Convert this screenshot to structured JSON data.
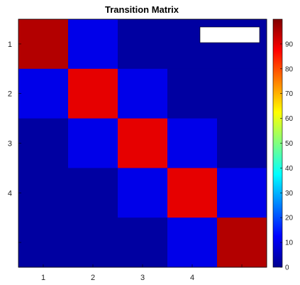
{
  "chart_data": {
    "type": "heatmap",
    "title": "Transition Matrix",
    "x_tick_labels": [
      "1",
      "2",
      "3",
      "4",
      ""
    ],
    "y_tick_labels": [
      "1",
      "2",
      "3",
      "4",
      ""
    ],
    "values": [
      [
        95,
        10,
        2,
        2,
        2
      ],
      [
        10,
        90,
        10,
        2,
        2
      ],
      [
        2,
        10,
        90,
        10,
        2
      ],
      [
        2,
        2,
        10,
        90,
        10
      ],
      [
        2,
        2,
        2,
        10,
        95
      ]
    ],
    "colorbar": {
      "min": 0,
      "max": 100,
      "ticks": [
        0,
        10,
        20,
        30,
        40,
        50,
        60,
        70,
        80,
        90
      ],
      "colormap": "jet"
    },
    "legend": {
      "placement": "top-right",
      "text": "",
      "color": "#ffffff"
    }
  }
}
